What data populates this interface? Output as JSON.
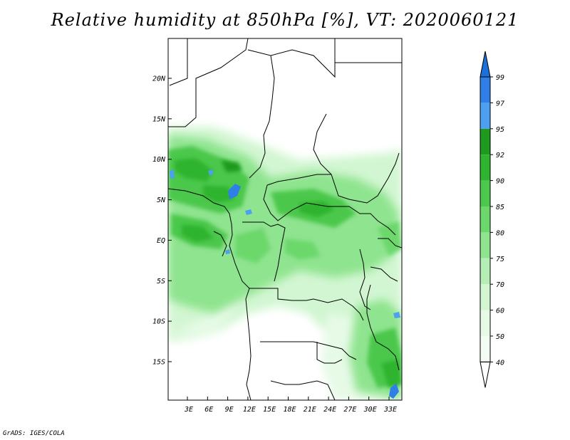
{
  "title": "Relative humidity at 850hPa [%], VT: 2020060121",
  "credit": "GrADS: IGES/COLA",
  "map": {
    "lat_ticks": [
      "20N",
      "15N",
      "10N",
      "5N",
      "EQ",
      "5S",
      "10S",
      "15S"
    ],
    "lon_ticks": [
      "3E",
      "6E",
      "9E",
      "12E",
      "15E",
      "18E",
      "21E",
      "24E",
      "27E",
      "30E",
      "33E"
    ]
  },
  "colorbar": {
    "levels": [
      {
        "label": "99",
        "color": "#1e6fd9"
      },
      {
        "label": "97",
        "color": "#2f7fe6"
      },
      {
        "label": "95",
        "color": "#4da0f0"
      },
      {
        "label": "92",
        "color": "#1e9a1e"
      },
      {
        "label": "90",
        "color": "#2fb42f"
      },
      {
        "label": "85",
        "color": "#4cc84c"
      },
      {
        "label": "80",
        "color": "#6cd86c"
      },
      {
        "label": "75",
        "color": "#8fe48f"
      },
      {
        "label": "70",
        "color": "#b4eeb4"
      },
      {
        "label": "60",
        "color": "#d2f6d2"
      },
      {
        "label": "50",
        "color": "#e6fae6"
      },
      {
        "label": "40",
        "color": "#f4fdf4"
      }
    ]
  }
}
